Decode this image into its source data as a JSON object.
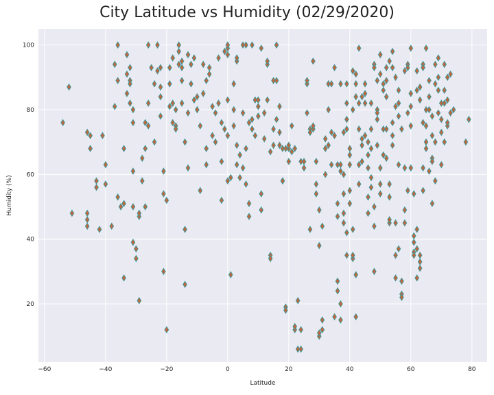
{
  "chart_data": {
    "type": "scatter",
    "title": "City Latitude vs Humidity (02/29/2020)",
    "xlabel": "Latitude",
    "ylabel": "Humidity (%)",
    "xlim": [
      -62,
      85
    ],
    "ylim": [
      2,
      105
    ],
    "xticks": [
      -60,
      -40,
      -20,
      0,
      20,
      40,
      60,
      80
    ],
    "yticks": [
      20,
      40,
      60,
      80,
      100
    ],
    "grid": true,
    "marker": "diamond",
    "colors": {
      "background": "#eaeaf2",
      "grid": "#ffffff",
      "marker_fill": "#c0663a",
      "marker_edge": "#3a9aa0",
      "text": "#222222"
    },
    "points": [
      [
        -54,
        76
      ],
      [
        -52,
        87
      ],
      [
        -51,
        48
      ],
      [
        -46,
        73
      ],
      [
        -46,
        46
      ],
      [
        -46,
        48
      ],
      [
        -46,
        44
      ],
      [
        -45,
        72
      ],
      [
        -45,
        68
      ],
      [
        -43,
        58
      ],
      [
        -43,
        56
      ],
      [
        -42,
        43
      ],
      [
        -41,
        72
      ],
      [
        -40,
        57
      ],
      [
        -40,
        63
      ],
      [
        -38,
        44
      ],
      [
        -37,
        94
      ],
      [
        -37,
        81
      ],
      [
        -36,
        100
      ],
      [
        -36,
        89
      ],
      [
        -36,
        53
      ],
      [
        -35,
        50
      ],
      [
        -34,
        28
      ],
      [
        -34,
        51
      ],
      [
        -34,
        68
      ],
      [
        -33,
        85
      ],
      [
        -33,
        97
      ],
      [
        -33,
        91
      ],
      [
        -32,
        93
      ],
      [
        -32,
        89
      ],
      [
        -32,
        88
      ],
      [
        -32,
        82
      ],
      [
        -31,
        80
      ],
      [
        -31,
        76
      ],
      [
        -31,
        61
      ],
      [
        -31,
        50
      ],
      [
        -31,
        39
      ],
      [
        -30,
        37
      ],
      [
        -30,
        34
      ],
      [
        -29,
        47
      ],
      [
        -29,
        48
      ],
      [
        -29,
        21
      ],
      [
        -28,
        58
      ],
      [
        -28,
        65
      ],
      [
        -27,
        76
      ],
      [
        -27,
        68
      ],
      [
        -27,
        50
      ],
      [
        -26,
        100
      ],
      [
        -26,
        82
      ],
      [
        -26,
        75
      ],
      [
        -25,
        93
      ],
      [
        -24,
        88
      ],
      [
        -24,
        70
      ],
      [
        -23,
        100
      ],
      [
        -23,
        92
      ],
      [
        -22,
        93
      ],
      [
        -22,
        87
      ],
      [
        -22,
        84
      ],
      [
        -22,
        78
      ],
      [
        -21,
        61
      ],
      [
        -21,
        30
      ],
      [
        -21,
        54
      ],
      [
        -20,
        12
      ],
      [
        -20,
        52
      ],
      [
        -19,
        88
      ],
      [
        -19,
        81
      ],
      [
        -19,
        93
      ],
      [
        -18,
        96
      ],
      [
        -18,
        82
      ],
      [
        -18,
        76
      ],
      [
        -17,
        75
      ],
      [
        -17,
        74
      ],
      [
        -17,
        80
      ],
      [
        -16,
        100
      ],
      [
        -16,
        98
      ],
      [
        -16,
        94
      ],
      [
        -15,
        95
      ],
      [
        -15,
        93
      ],
      [
        -15,
        89
      ],
      [
        -15,
        82
      ],
      [
        -14,
        70
      ],
      [
        -14,
        43
      ],
      [
        -14,
        26
      ],
      [
        -13,
        62
      ],
      [
        -13,
        79
      ],
      [
        -13,
        97
      ],
      [
        -12,
        94
      ],
      [
        -12,
        88
      ],
      [
        -11,
        96
      ],
      [
        -11,
        83
      ],
      [
        -10,
        84
      ],
      [
        -10,
        80
      ],
      [
        -9,
        55
      ],
      [
        -9,
        75
      ],
      [
        -8,
        94
      ],
      [
        -8,
        85
      ],
      [
        -7,
        63
      ],
      [
        -7,
        68
      ],
      [
        -7,
        89
      ],
      [
        -6,
        91
      ],
      [
        -6,
        93
      ],
      [
        -5,
        81
      ],
      [
        -5,
        72
      ],
      [
        -4,
        70
      ],
      [
        -4,
        79
      ],
      [
        -3,
        82
      ],
      [
        -3,
        96
      ],
      [
        -2,
        76
      ],
      [
        -2,
        52
      ],
      [
        -2,
        64
      ],
      [
        -1,
        98
      ],
      [
        -1,
        74
      ],
      [
        0,
        97
      ],
      [
        0,
        99
      ],
      [
        0,
        100
      ],
      [
        0,
        83
      ],
      [
        0,
        72
      ],
      [
        0,
        58
      ],
      [
        1,
        59
      ],
      [
        1,
        29
      ],
      [
        2,
        88
      ],
      [
        2,
        80
      ],
      [
        2,
        75
      ],
      [
        3,
        95
      ],
      [
        3,
        96
      ],
      [
        3,
        69
      ],
      [
        3,
        63
      ],
      [
        4,
        66
      ],
      [
        4,
        59
      ],
      [
        5,
        62
      ],
      [
        5,
        100
      ],
      [
        5,
        79
      ],
      [
        6,
        100
      ],
      [
        6,
        68
      ],
      [
        6,
        57
      ],
      [
        7,
        51
      ],
      [
        7,
        47
      ],
      [
        7,
        76
      ],
      [
        8,
        77
      ],
      [
        8,
        100
      ],
      [
        8,
        74
      ],
      [
        9,
        83
      ],
      [
        9,
        72
      ],
      [
        10,
        81
      ],
      [
        10,
        83
      ],
      [
        10,
        78
      ],
      [
        11,
        54
      ],
      [
        11,
        99
      ],
      [
        11,
        49
      ],
      [
        12,
        71
      ],
      [
        12,
        79
      ],
      [
        13,
        94
      ],
      [
        13,
        95
      ],
      [
        13,
        83
      ],
      [
        14,
        67
      ],
      [
        14,
        35
      ],
      [
        14,
        34
      ],
      [
        15,
        74
      ],
      [
        15,
        69
      ],
      [
        15,
        89
      ],
      [
        16,
        77
      ],
      [
        16,
        100
      ],
      [
        16,
        89
      ],
      [
        17,
        81
      ],
      [
        17,
        73
      ],
      [
        17,
        69
      ],
      [
        18,
        58
      ],
      [
        18,
        58
      ],
      [
        18,
        68
      ],
      [
        19,
        68
      ],
      [
        19,
        19
      ],
      [
        19,
        18
      ],
      [
        20,
        64
      ],
      [
        20,
        68
      ],
      [
        20,
        69
      ],
      [
        21,
        75
      ],
      [
        21,
        67
      ],
      [
        22,
        68
      ],
      [
        22,
        12
      ],
      [
        22,
        13
      ],
      [
        23,
        6
      ],
      [
        23,
        21
      ],
      [
        24,
        6
      ],
      [
        24,
        12
      ],
      [
        24,
        64
      ],
      [
        25,
        62
      ],
      [
        25,
        64
      ],
      [
        26,
        79
      ],
      [
        26,
        88
      ],
      [
        26,
        89
      ],
      [
        27,
        74
      ],
      [
        27,
        73
      ],
      [
        27,
        43
      ],
      [
        28,
        74
      ],
      [
        28,
        95
      ],
      [
        28,
        75
      ],
      [
        29,
        64
      ],
      [
        29,
        57
      ],
      [
        29,
        54
      ],
      [
        30,
        49
      ],
      [
        30,
        38
      ],
      [
        30,
        10
      ],
      [
        30,
        11
      ],
      [
        31,
        12
      ],
      [
        31,
        15
      ],
      [
        31,
        44
      ],
      [
        32,
        60
      ],
      [
        32,
        68
      ],
      [
        32,
        71
      ],
      [
        33,
        80
      ],
      [
        33,
        69
      ],
      [
        33,
        88
      ],
      [
        34,
        63
      ],
      [
        34,
        88
      ],
      [
        34,
        73
      ],
      [
        35,
        93
      ],
      [
        35,
        72
      ],
      [
        35,
        16
      ],
      [
        36,
        51
      ],
      [
        36,
        47
      ],
      [
        36,
        63
      ],
      [
        37,
        63
      ],
      [
        37,
        61
      ],
      [
        37,
        88
      ],
      [
        38,
        54
      ],
      [
        38,
        60
      ],
      [
        38,
        73
      ],
      [
        39,
        77
      ],
      [
        39,
        88
      ],
      [
        39,
        82
      ],
      [
        39,
        74
      ],
      [
        40,
        66
      ],
      [
        40,
        51
      ],
      [
        40,
        55
      ],
      [
        41,
        43
      ],
      [
        41,
        34
      ],
      [
        41,
        35
      ],
      [
        42,
        16
      ],
      [
        42,
        29
      ],
      [
        42,
        88
      ],
      [
        43,
        82
      ],
      [
        43,
        74
      ],
      [
        43,
        57
      ],
      [
        43,
        63
      ],
      [
        44,
        69
      ],
      [
        44,
        64
      ],
      [
        45,
        82
      ],
      [
        45,
        72
      ],
      [
        45,
        88
      ],
      [
        46,
        53
      ],
      [
        46,
        48
      ],
      [
        46,
        62
      ],
      [
        47,
        56
      ],
      [
        47,
        59
      ],
      [
        47,
        74
      ],
      [
        48,
        44
      ],
      [
        48,
        94
      ],
      [
        48,
        93
      ],
      [
        49,
        80
      ],
      [
        49,
        77
      ],
      [
        49,
        69
      ],
      [
        50,
        62
      ],
      [
        50,
        54
      ],
      [
        50,
        57
      ],
      [
        51,
        88
      ],
      [
        51,
        74
      ],
      [
        51,
        66
      ],
      [
        52,
        74
      ],
      [
        52,
        65
      ],
      [
        52,
        84
      ],
      [
        53,
        53
      ],
      [
        53,
        45
      ],
      [
        53,
        46
      ],
      [
        54,
        76
      ],
      [
        54,
        98
      ],
      [
        54,
        93
      ],
      [
        55,
        28
      ],
      [
        55,
        35
      ],
      [
        55,
        45
      ],
      [
        56,
        63
      ],
      [
        56,
        82
      ],
      [
        56,
        37
      ],
      [
        57,
        23
      ],
      [
        57,
        22
      ],
      [
        57,
        27
      ],
      [
        58,
        62
      ],
      [
        58,
        49
      ],
      [
        58,
        45
      ],
      [
        59,
        94
      ],
      [
        59,
        93
      ],
      [
        59,
        79
      ],
      [
        60,
        99
      ],
      [
        60,
        81
      ],
      [
        60,
        62
      ],
      [
        61,
        41
      ],
      [
        61,
        39
      ],
      [
        61,
        36
      ],
      [
        62,
        43
      ],
      [
        62,
        37
      ],
      [
        62,
        28
      ],
      [
        63,
        35
      ],
      [
        63,
        33
      ],
      [
        63,
        31
      ],
      [
        64,
        94
      ],
      [
        64,
        93
      ],
      [
        64,
        76
      ],
      [
        65,
        99
      ],
      [
        65,
        75
      ],
      [
        65,
        70
      ],
      [
        66,
        89
      ],
      [
        66,
        80
      ],
      [
        66,
        61
      ],
      [
        67,
        78
      ],
      [
        67,
        72
      ],
      [
        67,
        65
      ],
      [
        68,
        94
      ],
      [
        68,
        88
      ],
      [
        68,
        58
      ],
      [
        69,
        96
      ],
      [
        69,
        86
      ],
      [
        69,
        79
      ],
      [
        70,
        77
      ],
      [
        70,
        73
      ],
      [
        70,
        63
      ],
      [
        71,
        94
      ],
      [
        71,
        82
      ],
      [
        71,
        70
      ],
      [
        72,
        90
      ],
      [
        72,
        83
      ],
      [
        72,
        75
      ],
      [
        73,
        79
      ],
      [
        78,
        70
      ],
      [
        79,
        77
      ],
      [
        36,
        27
      ],
      [
        36,
        24
      ],
      [
        37,
        20
      ],
      [
        37,
        15
      ],
      [
        38,
        45
      ],
      [
        38,
        48
      ],
      [
        39,
        35
      ],
      [
        39,
        42
      ],
      [
        40,
        63
      ],
      [
        40,
        68
      ],
      [
        41,
        80
      ],
      [
        41,
        92
      ],
      [
        42,
        84
      ],
      [
        42,
        91
      ],
      [
        43,
        99
      ],
      [
        44,
        71
      ],
      [
        44,
        84
      ],
      [
        45,
        85
      ],
      [
        46,
        70
      ],
      [
        46,
        66
      ],
      [
        47,
        68
      ],
      [
        47,
        82
      ],
      [
        48,
        30
      ],
      [
        48,
        50
      ],
      [
        49,
        79
      ],
      [
        49,
        89
      ],
      [
        50,
        97
      ],
      [
        50,
        91
      ],
      [
        51,
        86
      ],
      [
        52,
        93
      ],
      [
        52,
        89
      ],
      [
        53,
        57
      ],
      [
        53,
        95
      ],
      [
        54,
        72
      ],
      [
        54,
        69
      ],
      [
        55,
        81
      ],
      [
        55,
        90
      ],
      [
        56,
        86
      ],
      [
        56,
        78
      ],
      [
        57,
        74
      ],
      [
        58,
        92
      ],
      [
        59,
        55
      ],
      [
        60,
        85
      ],
      [
        60,
        75
      ],
      [
        61,
        35
      ],
      [
        61,
        54
      ],
      [
        62,
        92
      ],
      [
        62,
        86
      ],
      [
        63,
        87
      ],
      [
        63,
        83
      ],
      [
        64,
        55
      ],
      [
        64,
        62
      ],
      [
        65,
        68
      ],
      [
        65,
        80
      ],
      [
        66,
        84
      ],
      [
        67,
        51
      ],
      [
        67,
        64
      ],
      [
        68,
        70
      ],
      [
        69,
        90
      ],
      [
        70,
        82
      ],
      [
        71,
        86
      ],
      [
        72,
        76
      ],
      [
        73,
        91
      ],
      [
        74,
        80
      ]
    ]
  }
}
